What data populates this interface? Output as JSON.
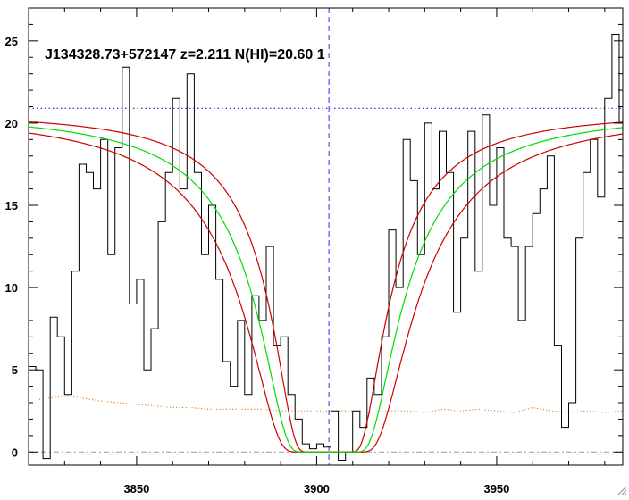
{
  "chart_data": {
    "type": "line",
    "title": "J134328.73+572147 z=2.211 N(HI)=20.60 1",
    "xlabel": "",
    "ylabel": "",
    "xlim": [
      3820,
      3985
    ],
    "ylim": [
      -0.8,
      27
    ],
    "x_ticks": [
      3850,
      3900,
      3950
    ],
    "y_ticks": [
      0,
      5,
      10,
      15,
      20,
      25
    ],
    "grid": false,
    "colors": {
      "flux": "#000000",
      "fit": "#00dd00",
      "fit_bounds": "#cc0000",
      "error": "#e07010",
      "continuum": "#6a1fbf",
      "center_line": "#2030ff",
      "zero_line": "#999999"
    },
    "continuum_level": 20.9,
    "center_wavelength": 3903.4,
    "zero_level": 0,
    "model": {
      "asymptote": 20.7,
      "fit_halfwidth": 24.0,
      "lower_halfwidth": 28.5,
      "upper_halfwidth": 19.5
    },
    "series": [
      {
        "id": "flux",
        "style": "step",
        "x": [
          3820,
          3822,
          3824,
          3826,
          3828,
          3830,
          3832,
          3834,
          3836,
          3838,
          3840,
          3842,
          3844,
          3846,
          3848,
          3850,
          3852,
          3854,
          3856,
          3858,
          3860,
          3862,
          3864,
          3866,
          3868,
          3870,
          3872,
          3874,
          3876,
          3878,
          3880,
          3882,
          3884,
          3886,
          3888,
          3890,
          3892,
          3894,
          3896,
          3898,
          3900,
          3902,
          3904,
          3906,
          3908,
          3910,
          3912,
          3914,
          3916,
          3918,
          3920,
          3922,
          3924,
          3926,
          3928,
          3930,
          3932,
          3934,
          3936,
          3938,
          3940,
          3942,
          3944,
          3946,
          3948,
          3950,
          3952,
          3954,
          3956,
          3958,
          3960,
          3962,
          3964,
          3966,
          3968,
          3970,
          3972,
          3974,
          3976,
          3978,
          3980,
          3982,
          3984
        ],
        "y": [
          5.2,
          5.0,
          -0.4,
          8.2,
          7.0,
          3.5,
          11.0,
          17.5,
          17.0,
          16.0,
          19.0,
          12.0,
          18.5,
          23.4,
          9.0,
          10.5,
          5.0,
          7.5,
          14.0,
          17.0,
          21.5,
          16.0,
          23.0,
          17.0,
          12.0,
          15.0,
          10.5,
          5.5,
          4.0,
          8.0,
          3.5,
          9.5,
          8.0,
          12.5,
          6.5,
          7.0,
          3.5,
          2.0,
          0.5,
          0.2,
          0.5,
          0.3,
          2.5,
          -0.5,
          0.0,
          2.5,
          1.5,
          4.5,
          3.5,
          7.0,
          13.5,
          10.0,
          19.0,
          16.5,
          12.0,
          20.0,
          16.0,
          19.5,
          17.0,
          8.5,
          13.0,
          19.5,
          11.0,
          20.5,
          15.0,
          18.5,
          13.0,
          12.5,
          8.0,
          12.5,
          14.5,
          16.0,
          18.0,
          6.5,
          1.5,
          3.0,
          13.0,
          17.0,
          19.0,
          15.5,
          21.5,
          25.4,
          20.0
        ]
      },
      {
        "id": "error",
        "style": "dotted",
        "x": [
          3823,
          3826,
          3830,
          3835,
          3840,
          3845,
          3850,
          3855,
          3860,
          3865,
          3870,
          3875,
          3880,
          3885,
          3890,
          3895,
          3900,
          3905,
          3910,
          3915,
          3920,
          3925,
          3930,
          3935,
          3940,
          3945,
          3950,
          3955,
          3960,
          3965,
          3970,
          3975,
          3980,
          3985
        ],
        "y": [
          3.2,
          3.3,
          3.4,
          3.3,
          3.1,
          3.0,
          2.9,
          2.8,
          2.7,
          2.7,
          2.6,
          2.6,
          2.6,
          2.6,
          2.5,
          2.5,
          2.5,
          2.5,
          2.5,
          2.4,
          2.5,
          2.5,
          2.4,
          2.6,
          2.5,
          2.6,
          2.5,
          2.4,
          2.7,
          2.5,
          2.4,
          2.5,
          2.4,
          2.5
        ]
      }
    ]
  },
  "window": {
    "resize_icon": "resize-grip-icon"
  }
}
